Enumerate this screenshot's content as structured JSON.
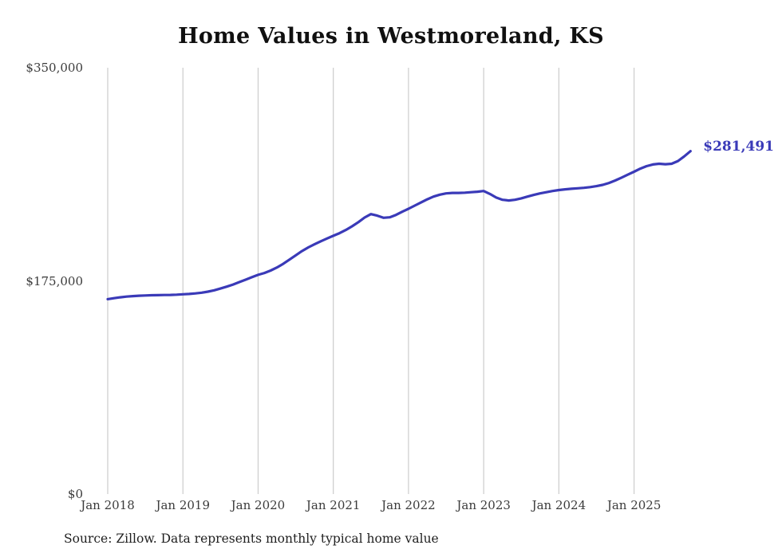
{
  "chart": {
    "title": "Home Values in Westmoreland, KS",
    "end_label": "$281,491",
    "source": "Source: Zillow. Data represents monthly typical home value",
    "line_color": "#3a3ab8",
    "grid_color": "#cccccc",
    "tick_text_color": "#3b3b3b"
  },
  "chart_data": {
    "type": "line",
    "title": "Home Values in Westmoreland, KS",
    "xlabel": "",
    "ylabel": "",
    "ylim": [
      0,
      350000
    ],
    "grid": "vertical-only",
    "legend": "none",
    "x_start": "2018-01",
    "x_frequency": "monthly",
    "x_tick_labels": [
      "Jan 2018",
      "Jan 2019",
      "Jan 2020",
      "Jan 2021",
      "Jan 2022",
      "Jan 2023",
      "Jan 2024",
      "Jan 2025"
    ],
    "x_tick_month_indices": [
      0,
      12,
      24,
      36,
      48,
      60,
      72,
      84
    ],
    "y_ticks": [
      {
        "value": 0,
        "label": "$0"
      },
      {
        "value": 175000,
        "label": "$175,000"
      },
      {
        "value": 350000,
        "label": "$350,000"
      }
    ],
    "series": [
      {
        "name": "Monthly typical home value",
        "values": [
          160000,
          160800,
          161500,
          162100,
          162500,
          162800,
          163000,
          163200,
          163300,
          163400,
          163500,
          163700,
          164000,
          164300,
          164700,
          165300,
          166200,
          167300,
          168700,
          170300,
          172000,
          174000,
          176000,
          178000,
          180000,
          181500,
          183500,
          186000,
          189000,
          192500,
          196000,
          199500,
          202500,
          205000,
          207500,
          209800,
          212000,
          214200,
          216800,
          219800,
          223200,
          227000,
          229800,
          228600,
          226800,
          227200,
          229200,
          231800,
          234200,
          236800,
          239400,
          242000,
          244200,
          245800,
          246800,
          247200,
          247200,
          247400,
          247800,
          248200,
          248800,
          246400,
          243400,
          241600,
          241000,
          241600,
          242800,
          244200,
          245600,
          246800,
          247800,
          248800,
          249600,
          250200,
          250600,
          251000,
          251400,
          252000,
          252800,
          253800,
          255400,
          257400,
          259800,
          262200,
          264600,
          267200,
          269200,
          270600,
          271200,
          270800,
          271200,
          273400,
          277200,
          281491
        ]
      }
    ],
    "end_annotation": {
      "label": "$281,491",
      "value": 281491,
      "x": "2025-10"
    },
    "source": "Source: Zillow. Data represents monthly typical home value"
  }
}
